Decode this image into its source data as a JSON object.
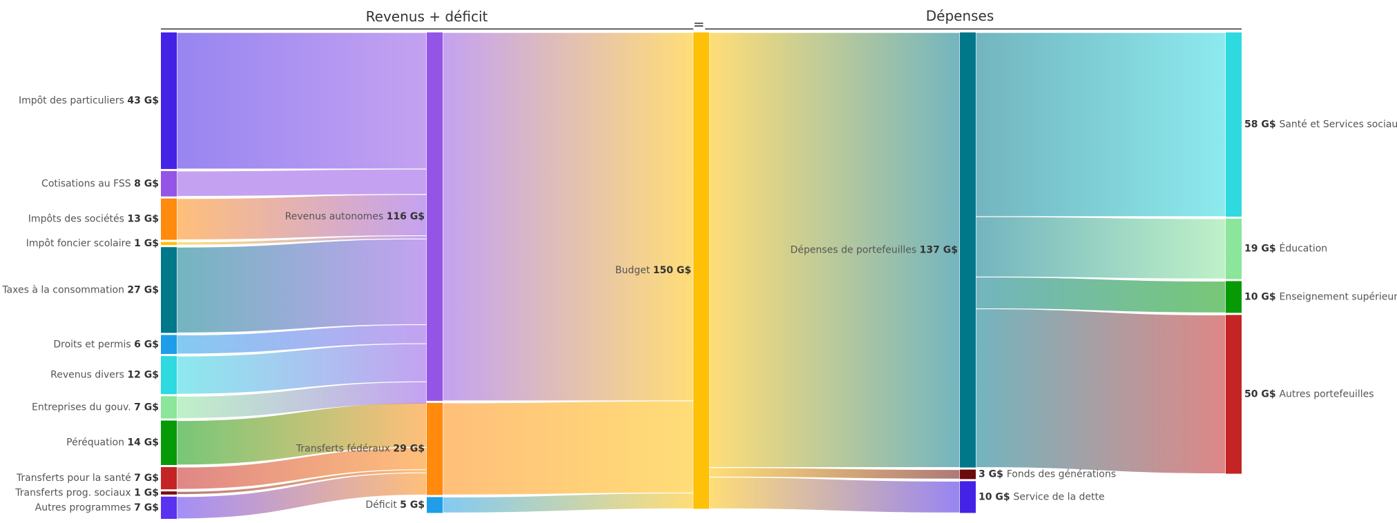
{
  "chart_data": {
    "type": "sankey",
    "unit": "G$",
    "headers": {
      "left": "Revenus + déficit",
      "equals": "=",
      "right": "Dépenses"
    },
    "nodes": [
      {
        "id": "ip",
        "label": "Impôt des particuliers",
        "value": 43,
        "color": "#4422e6",
        "column": 0
      },
      {
        "id": "fss",
        "label": "Cotisations au FSS",
        "value": 8,
        "color": "#9455e6",
        "column": 0
      },
      {
        "id": "soc",
        "label": "Impôts des sociétés",
        "value": 13,
        "color": "#ff8a0d",
        "column": 0
      },
      {
        "id": "fonc",
        "label": "Impôt foncier scolaire",
        "value": 1,
        "color": "#ffc107",
        "column": 0
      },
      {
        "id": "taxc",
        "label": "Taxes à la consommation",
        "value": 27,
        "color": "#00788a",
        "column": 0
      },
      {
        "id": "drt",
        "label": "Droits et permis",
        "value": 6,
        "color": "#1e9ee8",
        "column": 0
      },
      {
        "id": "div",
        "label": "Revenus divers",
        "value": 12,
        "color": "#2ed9e0",
        "column": 0
      },
      {
        "id": "ent",
        "label": "Entreprises du gouv.",
        "value": 7,
        "color": "#8be59b",
        "column": 0
      },
      {
        "id": "per",
        "label": "Péréquation",
        "value": 14,
        "color": "#079a07",
        "column": 0
      },
      {
        "id": "sant",
        "label": "Transferts pour la santé",
        "value": 7,
        "color": "#c42424",
        "column": 0
      },
      {
        "id": "prog",
        "label": "Transferts prog. sociaux",
        "value": 1,
        "color": "#7a0d0d",
        "column": 0
      },
      {
        "id": "autp",
        "label": "Autres programmes",
        "value": 7,
        "color": "#5a32f0",
        "column": 0
      },
      {
        "id": "rauto",
        "label": "Revenus autonomes",
        "value": 116,
        "color": "#9455e6",
        "column": 1
      },
      {
        "id": "tfed",
        "label": "Transferts fédéraux",
        "value": 29,
        "color": "#ff8a0d",
        "column": 1
      },
      {
        "id": "def",
        "label": "Déficit",
        "value": 5,
        "color": "#1e9ee8",
        "column": 1
      },
      {
        "id": "bud",
        "label": "Budget",
        "value": 150,
        "color": "#ffc107",
        "column": 2
      },
      {
        "id": "dport",
        "label": "Dépenses de portefeuilles",
        "value": 137,
        "color": "#00788a",
        "column": 3
      },
      {
        "id": "fgen",
        "label": "Fonds des générations",
        "value": 3,
        "color": "#6b0b0b",
        "column": 3
      },
      {
        "id": "dette",
        "label": "Service de la dette",
        "value": 10,
        "color": "#4422e6",
        "column": 3
      },
      {
        "id": "ssoc",
        "label": "Santé et Services sociaux",
        "value": 58,
        "color": "#2ed9e0",
        "column": 4
      },
      {
        "id": "edu",
        "label": "Éducation",
        "value": 19,
        "color": "#8be59b",
        "column": 4
      },
      {
        "id": "ens",
        "label": "Enseignement supérieur",
        "value": 10,
        "color": "#079a07",
        "column": 4
      },
      {
        "id": "autpf",
        "label": "Autres portefeuilles",
        "value": 50,
        "color": "#c42424",
        "column": 4
      }
    ],
    "links": [
      {
        "source": "ip",
        "target": "rauto",
        "value": 43
      },
      {
        "source": "fss",
        "target": "rauto",
        "value": 8
      },
      {
        "source": "soc",
        "target": "rauto",
        "value": 13
      },
      {
        "source": "fonc",
        "target": "rauto",
        "value": 1
      },
      {
        "source": "taxc",
        "target": "rauto",
        "value": 27
      },
      {
        "source": "drt",
        "target": "rauto",
        "value": 6
      },
      {
        "source": "div",
        "target": "rauto",
        "value": 12
      },
      {
        "source": "ent",
        "target": "rauto",
        "value": 7
      },
      {
        "source": "per",
        "target": "tfed",
        "value": 14
      },
      {
        "source": "sant",
        "target": "tfed",
        "value": 7
      },
      {
        "source": "prog",
        "target": "tfed",
        "value": 1
      },
      {
        "source": "autp",
        "target": "tfed",
        "value": 7
      },
      {
        "source": "rauto",
        "target": "bud",
        "value": 116
      },
      {
        "source": "tfed",
        "target": "bud",
        "value": 29
      },
      {
        "source": "def",
        "target": "bud",
        "value": 5
      },
      {
        "source": "bud",
        "target": "dport",
        "value": 137
      },
      {
        "source": "bud",
        "target": "fgen",
        "value": 3
      },
      {
        "source": "bud",
        "target": "dette",
        "value": 10
      },
      {
        "source": "dport",
        "target": "ssoc",
        "value": 58
      },
      {
        "source": "dport",
        "target": "edu",
        "value": 19
      },
      {
        "source": "dport",
        "target": "ens",
        "value": 10
      },
      {
        "source": "dport",
        "target": "autpf",
        "value": 50
      }
    ]
  }
}
